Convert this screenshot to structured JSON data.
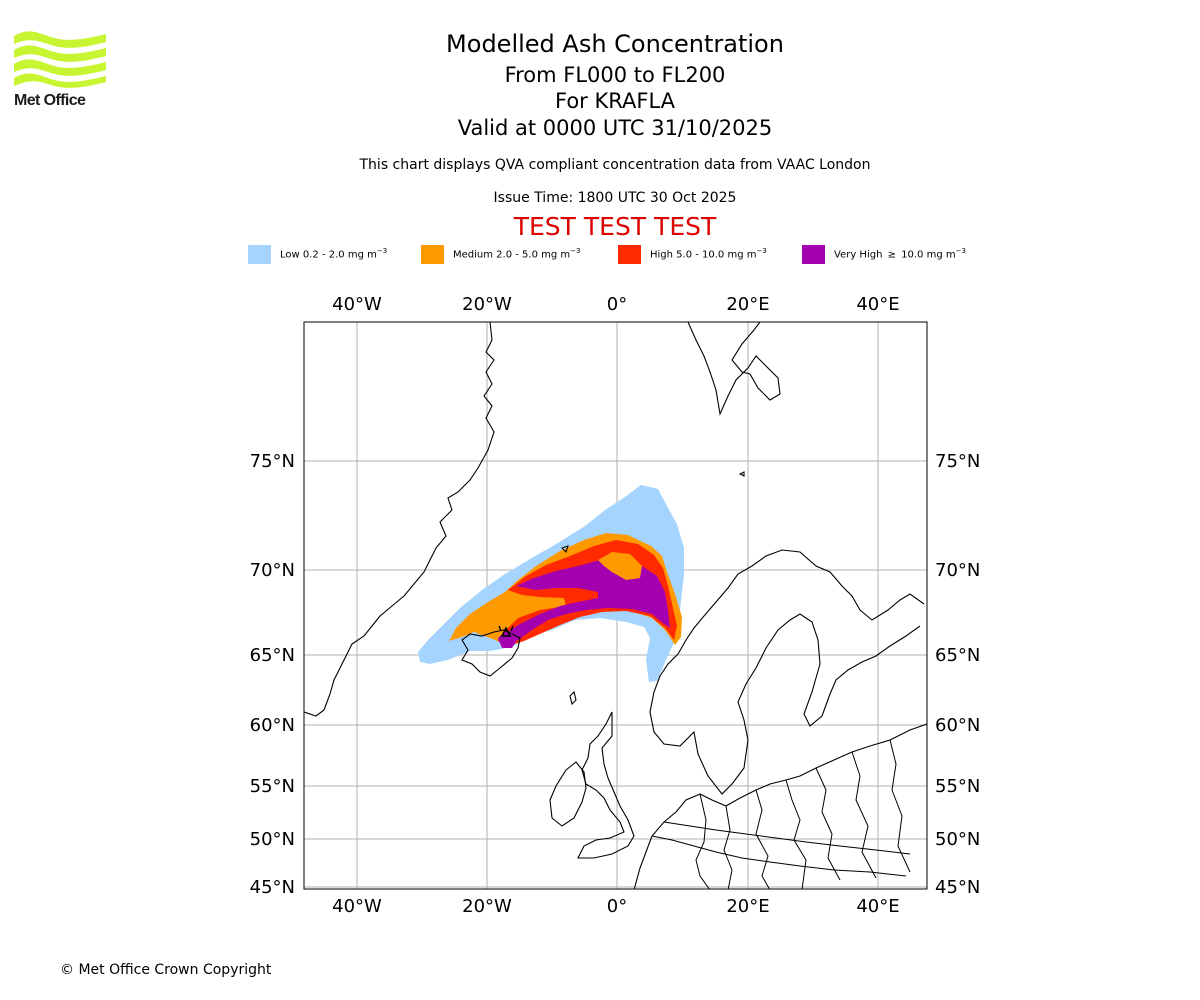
{
  "logo": {
    "text": "Met Office",
    "icon": "met-office-wave-logo",
    "color": "#c8f532"
  },
  "title": {
    "main": "Modelled Ash Concentration",
    "levels": "From FL000 to FL200",
    "volcano": "For KRAFLA",
    "valid": "Valid at 0000 UTC 31/10/2025",
    "description": "This chart displays QVA compliant concentration data from VAAC London",
    "issue": "Issue Time: 1800 UTC 30 Oct 2025",
    "test_banner": "TEST TEST TEST"
  },
  "legend": [
    {
      "name": "Low",
      "label": "Low 0.2 - 2.0 mg m",
      "exp": "−3",
      "color": "#a5d4ff"
    },
    {
      "name": "Medium",
      "label": "Medium 2.0 - 5.0 mg m",
      "exp": "−3",
      "color": "#ff9900"
    },
    {
      "name": "High",
      "label": "High 5.0 - 10.0 mg m",
      "exp": "−3",
      "color": "#ff2a00"
    },
    {
      "name": "Very High",
      "label": "Very High  ≥  10.0 mg m",
      "exp": "−3",
      "color": "#a500b0"
    }
  ],
  "map": {
    "lon_labels": [
      "40°W",
      "20°W",
      "0°",
      "20°E",
      "40°E"
    ],
    "lat_labels": [
      "75°N",
      "70°N",
      "65°N",
      "60°N",
      "55°N",
      "50°N",
      "45°N"
    ],
    "source_volcano": "Krafla",
    "coastline_color": "#000000",
    "grid_color": "#b0b0b0"
  },
  "footer": {
    "copyright": "© Met Office Crown Copyright"
  }
}
